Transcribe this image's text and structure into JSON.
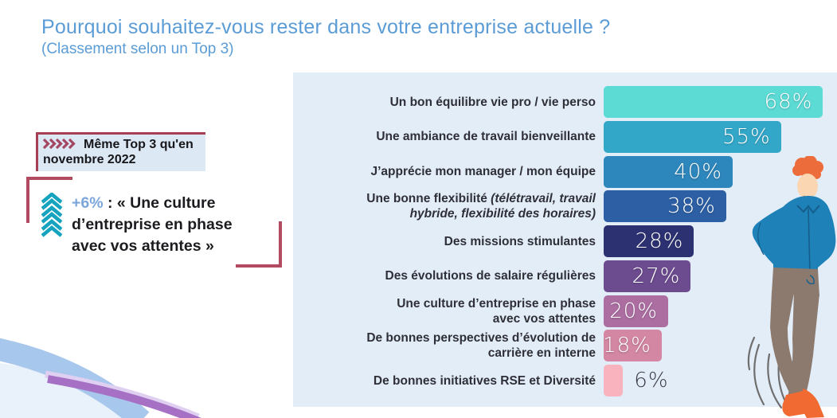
{
  "title": "Pourquoi souhaitez-vous rester dans votre entreprise actuelle ?",
  "subtitle": "(Classement selon un Top 3)",
  "annotations": {
    "badge": {
      "chevrons_icon": "five-right-chevrons",
      "text": "Même Top 3 qu'en novembre 2022"
    },
    "increase_note": {
      "icon": "triple-up-chevrons",
      "value": "+6%",
      "lines": [
        " : « Une culture",
        "d’entreprise en phase",
        "avec vos attentes »"
      ]
    }
  },
  "chart_data": {
    "type": "bar",
    "orientation": "horizontal",
    "title": "",
    "xlabel": "",
    "ylabel": "",
    "xlim": [
      0,
      100
    ],
    "grid": false,
    "legend": false,
    "unit": "%",
    "categories": [
      "Un bon équilibre vie pro / vie perso",
      "Une ambiance de travail bienveillante",
      "J’apprécie mon manager / mon équipe",
      "Une bonne flexibilité (télétravail, travail hybride, flexibilité des horaires)",
      "Des missions stimulantes",
      "Des évolutions de salaire régulières",
      "Une culture d’entreprise en phase avec vos attentes",
      "De bonnes perspectives d’évolution de carrière en interne",
      "De bonnes initiatives RSE et Diversité"
    ],
    "category_lines": [
      [
        {
          "t": "Un bon équilibre vie pro / vie perso"
        }
      ],
      [
        {
          "t": "Une ambiance de travail bienveillante"
        }
      ],
      [
        {
          "t": "J’apprécie mon manager / mon équipe"
        }
      ],
      [
        {
          "t": "Une bonne flexibilité ",
          "i": "(télétravail, travail"
        },
        {
          "i": "hybride, flexibilité des horaires)"
        }
      ],
      [
        {
          "t": "Des missions stimulantes"
        }
      ],
      [
        {
          "t": "Des évolutions de salaire régulières"
        }
      ],
      [
        {
          "t": "Une culture d’entreprise en phase"
        },
        {
          "t": "avec vos attentes"
        }
      ],
      [
        {
          "t": "De bonnes perspectives d’évolution de"
        },
        {
          "t": "carrière en interne"
        }
      ],
      [
        {
          "t": "De bonnes initiatives RSE et Diversité"
        }
      ]
    ],
    "values": [
      68,
      55,
      40,
      38,
      28,
      27,
      20,
      18,
      6
    ],
    "bar_colors": [
      "#5CDBD5",
      "#33A7C8",
      "#2E87BC",
      "#2C5FA4",
      "#2C3172",
      "#6C4B8E",
      "#AC6EA1",
      "#D487A2",
      "#F9B3BF"
    ],
    "value_label_inside_color": "#FFFFFF",
    "value_label_outside_color": "#3A3A45"
  },
  "colors": {
    "title_blue": "#5B9CD6",
    "panel_bg": "#E3EDF8",
    "red_accent": "#A84055",
    "bracket_red": "#B24A61",
    "teal_chevron": "#16A3BF",
    "increase_value_blue": "#7BA6DB",
    "badge_bg": "#DCE8F4",
    "label_dark": "#2F2F38",
    "value_outside_dark": "#3A3A45"
  }
}
